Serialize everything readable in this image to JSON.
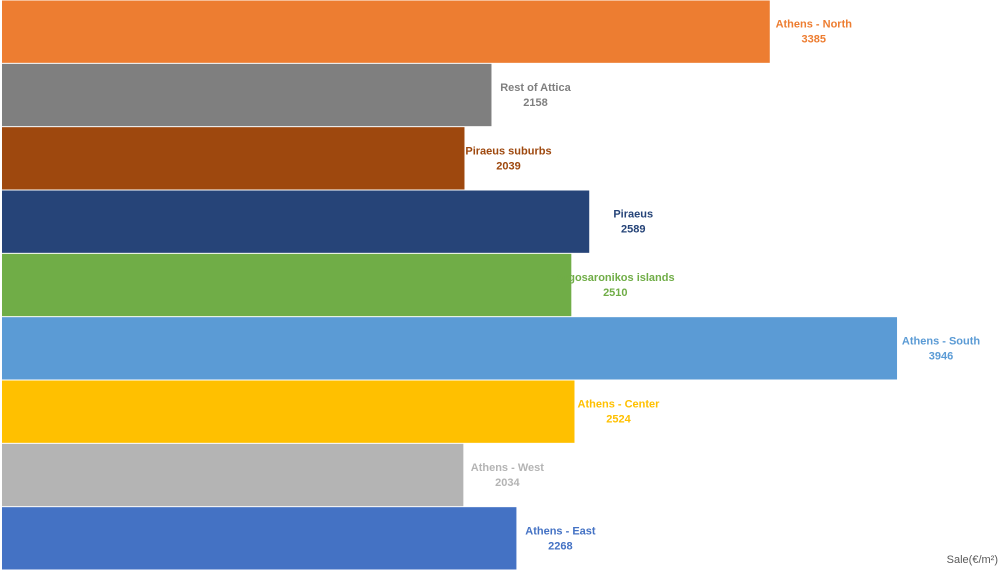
{
  "chart_data": {
    "type": "bar",
    "orientation": "horizontal",
    "unit_label": "Sale(€/m²)",
    "xlim": [
      0,
      4400
    ],
    "grid": false,
    "legend": "none",
    "categories": [
      "Athens - North",
      "Rest of Attica",
      "Piraeus suburbs",
      "Piraeus",
      "Argosaronikos islands",
      "Athens - South",
      "Athens - Center",
      "Athens - West",
      "Athens - East"
    ],
    "values": [
      3385,
      2158,
      2039,
      2589,
      2510,
      3946,
      2524,
      2034,
      2268
    ],
    "colors": [
      "#ED7D31",
      "#7F7F7F",
      "#9E480E",
      "#264478",
      "#70AD47",
      "#5B9BD5",
      "#FFC000",
      "#B4B4B4",
      "#4472C4"
    ]
  }
}
